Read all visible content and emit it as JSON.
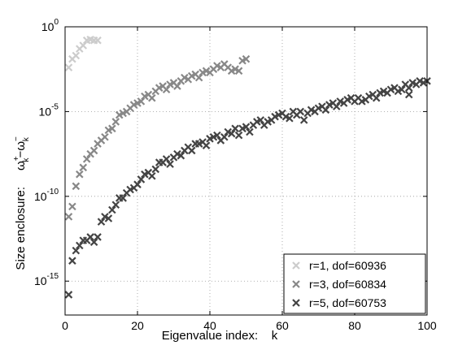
{
  "chart_data": {
    "type": "scatter",
    "xlabel": "Eigenvalue index:    k",
    "ylabel_prefix": "Size enclosure:",
    "ylabel_math": {
      "omega": "ω",
      "sub": "k",
      "plus": "+",
      "minus": "−"
    },
    "xlim": [
      0,
      100
    ],
    "ylim_exponent": [
      -17,
      0
    ],
    "y_scale": "log",
    "grid": true,
    "marker": "x",
    "legend_position": "bottom-right",
    "x_ticks": [
      "0",
      "20",
      "40",
      "60",
      "80",
      "100"
    ],
    "y_ticks": [
      {
        "base": "10",
        "exp": "0"
      },
      {
        "base": "10",
        "exp": "-5"
      },
      {
        "base": "10",
        "exp": "-10"
      },
      {
        "base": "10",
        "exp": "-15"
      }
    ],
    "series": [
      {
        "name": "r=1, dof=60936",
        "color": "#cccccc",
        "points": [
          [
            1,
            -2.4
          ],
          [
            2,
            -1.9
          ],
          [
            3,
            -1.7
          ],
          [
            4,
            -1.3
          ],
          [
            5,
            -1.1
          ],
          [
            6,
            -0.8
          ],
          [
            7,
            -0.75
          ],
          [
            8,
            -0.8
          ],
          [
            9,
            -0.8
          ]
        ]
      },
      {
        "name": "r=3, dof=60834",
        "color": "#888888",
        "points": [
          [
            1,
            -11.2
          ],
          [
            2,
            -10.6
          ],
          [
            3,
            -9.4
          ],
          [
            4,
            -8.7
          ],
          [
            5,
            -8.3
          ],
          [
            6,
            -7.8
          ],
          [
            7,
            -7.5
          ],
          [
            8,
            -7.3
          ],
          [
            9,
            -6.9
          ],
          [
            10,
            -6.7
          ],
          [
            11,
            -6.5
          ],
          [
            12,
            -6.1
          ],
          [
            13,
            -6.0
          ],
          [
            14,
            -5.6
          ],
          [
            15,
            -5.2
          ],
          [
            16,
            -5.1
          ],
          [
            17,
            -5.0
          ],
          [
            18,
            -4.8
          ],
          [
            19,
            -4.6
          ],
          [
            20,
            -4.5
          ],
          [
            21,
            -4.4
          ],
          [
            22,
            -4.1
          ],
          [
            23,
            -4.0
          ],
          [
            24,
            -4.2
          ],
          [
            25,
            -3.8
          ],
          [
            26,
            -3.6
          ],
          [
            27,
            -3.5
          ],
          [
            28,
            -3.7
          ],
          [
            29,
            -3.4
          ],
          [
            30,
            -3.3
          ],
          [
            31,
            -3.5
          ],
          [
            32,
            -3.2
          ],
          [
            33,
            -3.0
          ],
          [
            34,
            -3.1
          ],
          [
            35,
            -2.9
          ],
          [
            36,
            -2.8
          ],
          [
            37,
            -3.0
          ],
          [
            38,
            -2.7
          ],
          [
            39,
            -2.6
          ],
          [
            40,
            -2.7
          ],
          [
            41,
            -2.5
          ],
          [
            42,
            -2.3
          ],
          [
            43,
            -2.4
          ],
          [
            44,
            -2.2
          ],
          [
            45,
            -2.4
          ],
          [
            46,
            -2.6
          ],
          [
            47,
            -2.5
          ],
          [
            48,
            -2.6
          ],
          [
            49,
            -2.0
          ],
          [
            50,
            -1.9
          ]
        ]
      },
      {
        "name": "r=5, dof=60753",
        "color": "#444444",
        "points": [
          [
            1,
            -15.8
          ],
          [
            2,
            -13.8
          ],
          [
            3,
            -13.2
          ],
          [
            4,
            -12.9
          ],
          [
            5,
            -12.6
          ],
          [
            6,
            -12.6
          ],
          [
            7,
            -12.4
          ],
          [
            8,
            -12.7
          ],
          [
            9,
            -12.4
          ],
          [
            10,
            -11.5
          ],
          [
            11,
            -11.2
          ],
          [
            12,
            -11.3
          ],
          [
            13,
            -10.8
          ],
          [
            14,
            -10.5
          ],
          [
            15,
            -10.1
          ],
          [
            16,
            -10.1
          ],
          [
            17,
            -9.8
          ],
          [
            18,
            -9.6
          ],
          [
            19,
            -9.5
          ],
          [
            20,
            -9.3
          ],
          [
            21,
            -9.0
          ],
          [
            22,
            -8.7
          ],
          [
            23,
            -8.6
          ],
          [
            24,
            -8.8
          ],
          [
            25,
            -8.4
          ],
          [
            26,
            -8.0
          ],
          [
            27,
            -8.0
          ],
          [
            28,
            -7.8
          ],
          [
            29,
            -8.1
          ],
          [
            30,
            -7.7
          ],
          [
            31,
            -7.5
          ],
          [
            32,
            -7.6
          ],
          [
            33,
            -7.3
          ],
          [
            34,
            -7.1
          ],
          [
            35,
            -7.3
          ],
          [
            36,
            -6.9
          ],
          [
            37,
            -6.9
          ],
          [
            38,
            -6.8
          ],
          [
            39,
            -7.0
          ],
          [
            40,
            -6.6
          ],
          [
            41,
            -6.5
          ],
          [
            42,
            -6.4
          ],
          [
            43,
            -6.7
          ],
          [
            44,
            -6.5
          ],
          [
            45,
            -6.2
          ],
          [
            46,
            -6.3
          ],
          [
            47,
            -6.0
          ],
          [
            48,
            -6.4
          ],
          [
            49,
            -6.0
          ],
          [
            50,
            -5.9
          ],
          [
            51,
            -6.2
          ],
          [
            52,
            -5.8
          ],
          [
            53,
            -5.6
          ],
          [
            54,
            -5.5
          ],
          [
            55,
            -5.8
          ],
          [
            56,
            -5.6
          ],
          [
            57,
            -5.5
          ],
          [
            58,
            -5.3
          ],
          [
            59,
            -5.2
          ],
          [
            60,
            -5.1
          ],
          [
            61,
            -5.3
          ],
          [
            62,
            -5.4
          ],
          [
            63,
            -5.0
          ],
          [
            64,
            -5.2
          ],
          [
            65,
            -5.0
          ],
          [
            66,
            -5.5
          ],
          [
            67,
            -5.1
          ],
          [
            68,
            -4.9
          ],
          [
            69,
            -5.0
          ],
          [
            70,
            -4.8
          ],
          [
            71,
            -4.7
          ],
          [
            72,
            -4.9
          ],
          [
            73,
            -4.6
          ],
          [
            74,
            -4.5
          ],
          [
            75,
            -4.7
          ],
          [
            76,
            -4.4
          ],
          [
            77,
            -4.5
          ],
          [
            78,
            -4.3
          ],
          [
            79,
            -4.2
          ],
          [
            80,
            -4.4
          ],
          [
            81,
            -4.2
          ],
          [
            82,
            -4.4
          ],
          [
            83,
            -4.3
          ],
          [
            84,
            -4.1
          ],
          [
            85,
            -4.0
          ],
          [
            86,
            -4.2
          ],
          [
            87,
            -3.9
          ],
          [
            88,
            -3.8
          ],
          [
            89,
            -3.9
          ],
          [
            90,
            -3.7
          ],
          [
            91,
            -3.6
          ],
          [
            92,
            -3.8
          ],
          [
            93,
            -3.7
          ],
          [
            94,
            -3.4
          ],
          [
            95,
            -3.6
          ],
          [
            96,
            -3.3
          ],
          [
            97,
            -3.4
          ],
          [
            98,
            -3.2
          ],
          [
            99,
            -3.3
          ],
          [
            100,
            -3.2
          ],
          [
            95,
            -4.0
          ]
        ]
      }
    ]
  }
}
